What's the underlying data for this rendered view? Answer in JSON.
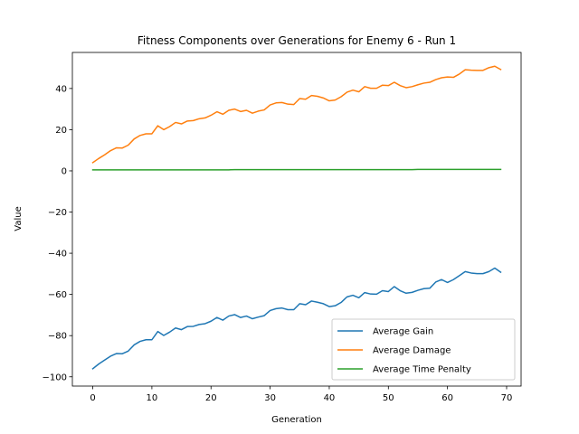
{
  "chart_data": {
    "type": "line",
    "title": "Fitness Components over Generations for Enemy 6 - Run 1",
    "xlabel": "Generation",
    "ylabel": "Value",
    "xlim": [
      -3.45,
      72.45
    ],
    "ylim": [
      -104.5,
      57.5
    ],
    "xticks": [
      0,
      10,
      20,
      30,
      40,
      50,
      60,
      70
    ],
    "yticks": [
      -100,
      -80,
      -60,
      -40,
      -20,
      0,
      20,
      40
    ],
    "grid": false,
    "legend_position": "lower right",
    "x": [
      0,
      1,
      2,
      3,
      4,
      5,
      6,
      7,
      8,
      9,
      10,
      11,
      12,
      13,
      14,
      15,
      16,
      17,
      18,
      19,
      20,
      21,
      22,
      23,
      24,
      25,
      26,
      27,
      28,
      29,
      30,
      31,
      32,
      33,
      34,
      35,
      36,
      37,
      38,
      39,
      40,
      41,
      42,
      43,
      44,
      45,
      46,
      47,
      48,
      49,
      50,
      51,
      52,
      53,
      54,
      55,
      56,
      57,
      58,
      59,
      60,
      61,
      62,
      63,
      64,
      65,
      66,
      67,
      68,
      69
    ],
    "series": [
      {
        "name": "Average Gain",
        "color": "#1f77b4",
        "values": [
          -96.1,
          -93.8,
          -91.9,
          -90.0,
          -88.7,
          -88.8,
          -87.5,
          -84.5,
          -82.8,
          -82.0,
          -82.0,
          -78.0,
          -79.9,
          -78.3,
          -76.3,
          -77.1,
          -75.6,
          -75.5,
          -74.6,
          -74.2,
          -73.0,
          -71.2,
          -72.5,
          -70.5,
          -69.8,
          -71.2,
          -70.5,
          -71.8,
          -71.0,
          -70.3,
          -67.8,
          -66.9,
          -66.6,
          -67.4,
          -67.4,
          -64.5,
          -65.0,
          -63.2,
          -63.8,
          -64.5,
          -65.9,
          -65.5,
          -63.9,
          -61.2,
          -60.4,
          -61.6,
          -59.1,
          -59.8,
          -59.9,
          -58.2,
          -58.6,
          -56.2,
          -58.2,
          -59.4,
          -59.0,
          -58.0,
          -57.2,
          -57.0,
          -54.0,
          -52.8,
          -54.2,
          -52.8,
          -50.9,
          -48.9,
          -49.6,
          -49.9,
          -49.9,
          -48.9,
          -47.2,
          -49.2
        ]
      },
      {
        "name": "Average Damage",
        "color": "#ff7f0e",
        "values": [
          4.0,
          6.0,
          7.8,
          9.8,
          11.2,
          11.1,
          12.5,
          15.5,
          17.2,
          18.0,
          18.0,
          21.9,
          20.0,
          21.5,
          23.5,
          22.8,
          24.2,
          24.4,
          25.3,
          25.7,
          27.0,
          28.7,
          27.5,
          29.4,
          30.0,
          28.8,
          29.4,
          28.0,
          29.0,
          29.6,
          32.0,
          33.0,
          33.2,
          32.4,
          32.2,
          35.1,
          34.8,
          36.6,
          36.2,
          35.4,
          34.0,
          34.4,
          36.0,
          38.2,
          39.2,
          38.4,
          40.9,
          40.1,
          40.1,
          41.6,
          41.4,
          43.0,
          41.4,
          40.4,
          40.9,
          41.8,
          42.6,
          43.0,
          44.3,
          45.2,
          45.6,
          45.4,
          47.0,
          49.1,
          48.9,
          48.8,
          48.8,
          50.1,
          50.8,
          49.2
        ]
      },
      {
        "name": "Average Time Penalty",
        "color": "#2ca02c",
        "values": [
          0.5,
          0.5,
          0.5,
          0.5,
          0.5,
          0.5,
          0.5,
          0.5,
          0.5,
          0.5,
          0.5,
          0.5,
          0.5,
          0.5,
          0.5,
          0.5,
          0.5,
          0.5,
          0.5,
          0.5,
          0.5,
          0.5,
          0.5,
          0.5,
          0.6,
          0.6,
          0.6,
          0.6,
          0.6,
          0.6,
          0.6,
          0.6,
          0.6,
          0.6,
          0.6,
          0.6,
          0.6,
          0.6,
          0.6,
          0.6,
          0.6,
          0.6,
          0.6,
          0.6,
          0.6,
          0.6,
          0.6,
          0.6,
          0.6,
          0.6,
          0.6,
          0.6,
          0.6,
          0.6,
          0.6,
          0.7,
          0.7,
          0.7,
          0.7,
          0.7,
          0.7,
          0.7,
          0.7,
          0.7,
          0.7,
          0.7,
          0.7,
          0.7,
          0.7,
          0.7
        ]
      }
    ]
  }
}
